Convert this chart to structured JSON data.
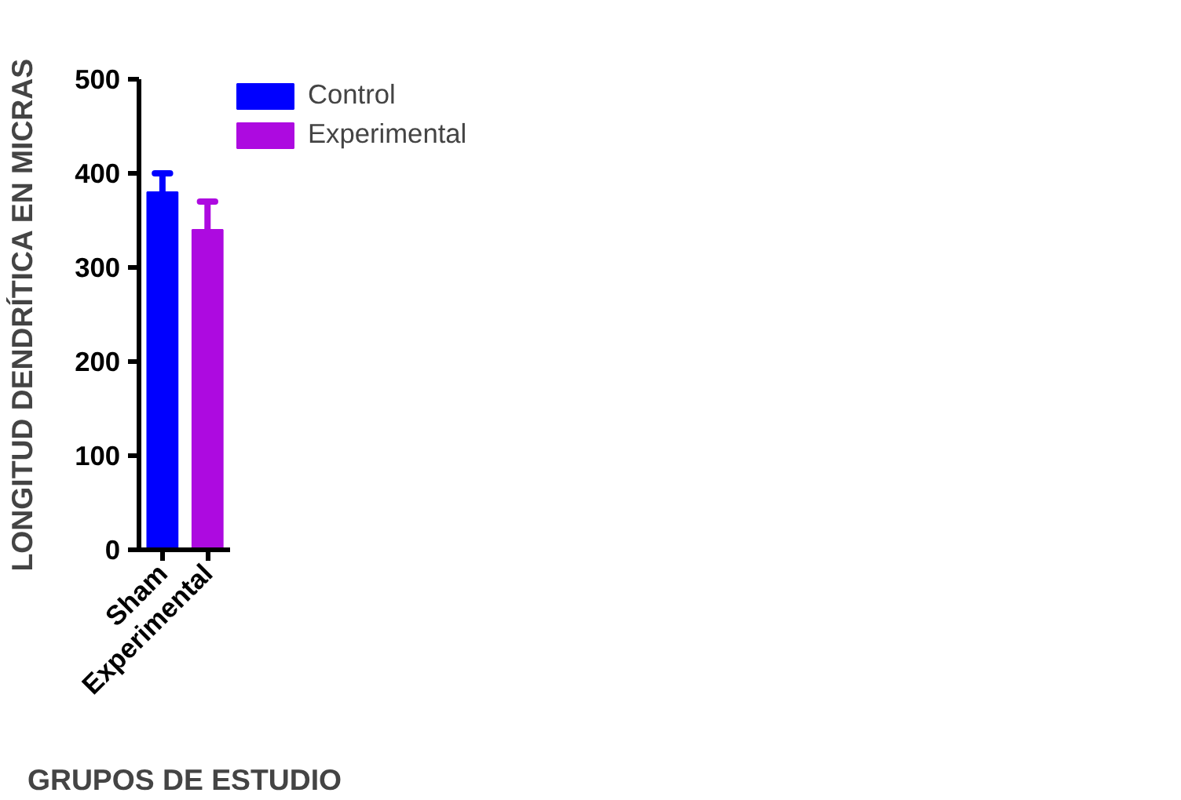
{
  "chart_data": {
    "type": "bar",
    "xlabel": "GRUPOS DE ESTUDIO",
    "ylabel": "LONGITUD DENDRÍTICA EN MICRAS",
    "categories": [
      "Sham",
      "Experimental"
    ],
    "series": [
      {
        "name": "Control",
        "color": "#0000ff",
        "values": [
          380,
          null
        ],
        "errors": [
          20,
          null
        ]
      },
      {
        "name": "Experimental",
        "color": "#ad0ae0",
        "values": [
          null,
          340
        ],
        "errors": [
          null,
          30
        ]
      }
    ],
    "ylim": [
      0,
      500
    ],
    "yticks": [
      0,
      100,
      200,
      300,
      400,
      500
    ],
    "grid": false,
    "legend": "top right"
  }
}
